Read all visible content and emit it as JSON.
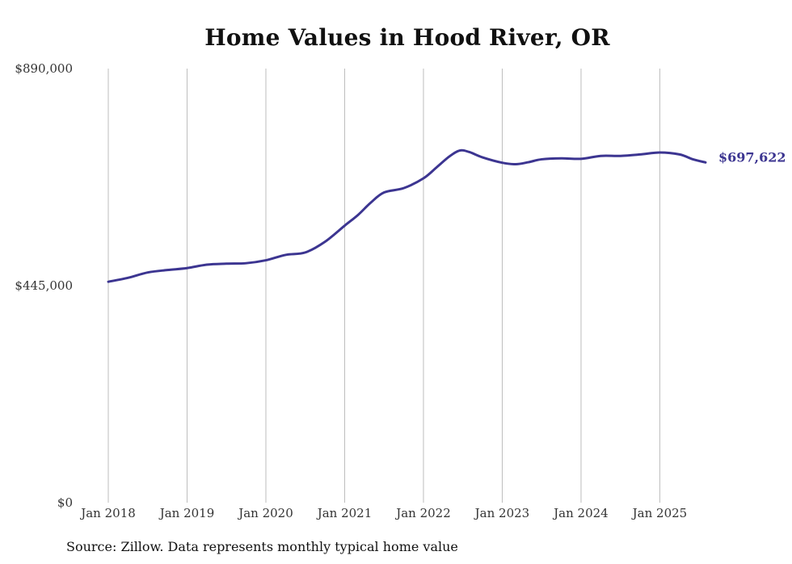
{
  "chart_data": {
    "type": "line",
    "title": "Home Values in Hood River, OR",
    "xlabel": "",
    "ylabel": "",
    "ylim": [
      0,
      890000
    ],
    "y_ticks": [
      {
        "value": 0,
        "label": "$0"
      },
      {
        "value": 445000,
        "label": "$445,000"
      },
      {
        "value": 890000,
        "label": "$890,000"
      }
    ],
    "x_ticks": [
      {
        "value": 2018,
        "label": "Jan 2018"
      },
      {
        "value": 2019,
        "label": "Jan 2019"
      },
      {
        "value": 2020,
        "label": "Jan 2020"
      },
      {
        "value": 2021,
        "label": "Jan 2021"
      },
      {
        "value": 2022,
        "label": "Jan 2022"
      },
      {
        "value": 2023,
        "label": "Jan 2023"
      },
      {
        "value": 2024,
        "label": "Jan 2024"
      },
      {
        "value": 2025,
        "label": "Jan 2025"
      }
    ],
    "xlim": [
      2018,
      2025.58
    ],
    "vertical_grid": true,
    "series": [
      {
        "name": "Typical home value",
        "color": "#3c3591",
        "end_label": "$697,622",
        "points": [
          {
            "x": 2018.0,
            "y": 453000
          },
          {
            "x": 2018.25,
            "y": 461000
          },
          {
            "x": 2018.5,
            "y": 472000
          },
          {
            "x": 2018.75,
            "y": 477000
          },
          {
            "x": 2019.0,
            "y": 481000
          },
          {
            "x": 2019.25,
            "y": 488000
          },
          {
            "x": 2019.5,
            "y": 490000
          },
          {
            "x": 2019.75,
            "y": 491000
          },
          {
            "x": 2020.0,
            "y": 497000
          },
          {
            "x": 2020.25,
            "y": 508000
          },
          {
            "x": 2020.5,
            "y": 513000
          },
          {
            "x": 2020.75,
            "y": 535000
          },
          {
            "x": 2021.0,
            "y": 568000
          },
          {
            "x": 2021.17,
            "y": 590000
          },
          {
            "x": 2021.33,
            "y": 615000
          },
          {
            "x": 2021.5,
            "y": 636000
          },
          {
            "x": 2021.75,
            "y": 645000
          },
          {
            "x": 2022.0,
            "y": 665000
          },
          {
            "x": 2022.17,
            "y": 688000
          },
          {
            "x": 2022.33,
            "y": 710000
          },
          {
            "x": 2022.46,
            "y": 722000
          },
          {
            "x": 2022.58,
            "y": 719000
          },
          {
            "x": 2022.75,
            "y": 708000
          },
          {
            "x": 2023.0,
            "y": 697000
          },
          {
            "x": 2023.17,
            "y": 694000
          },
          {
            "x": 2023.33,
            "y": 698000
          },
          {
            "x": 2023.5,
            "y": 704000
          },
          {
            "x": 2023.75,
            "y": 706000
          },
          {
            "x": 2024.0,
            "y": 705000
          },
          {
            "x": 2024.25,
            "y": 711000
          },
          {
            "x": 2024.5,
            "y": 711000
          },
          {
            "x": 2024.75,
            "y": 714000
          },
          {
            "x": 2025.0,
            "y": 718000
          },
          {
            "x": 2025.25,
            "y": 714000
          },
          {
            "x": 2025.42,
            "y": 704000
          },
          {
            "x": 2025.58,
            "y": 697622
          }
        ]
      }
    ]
  },
  "footer": {
    "source": "Source: Zillow. Data represents monthly typical home value"
  },
  "colors": {
    "line": "#3c3591",
    "grid": "#bdbdbd",
    "text": "#333333"
  }
}
